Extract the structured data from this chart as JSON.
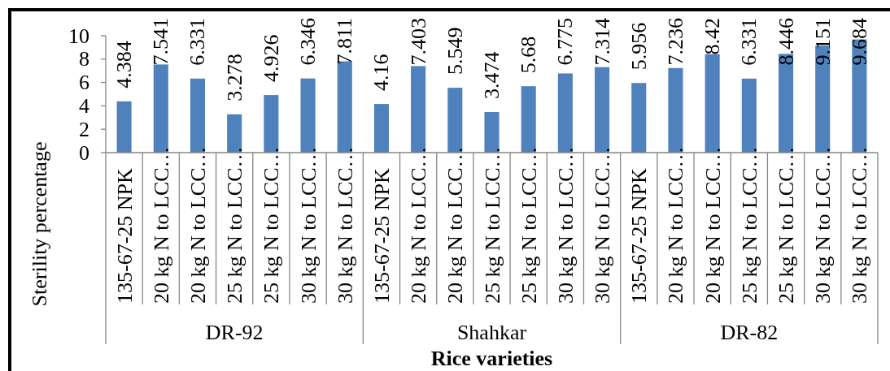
{
  "chart_data": {
    "type": "bar",
    "xlabel": "Rice varieties",
    "ylabel": "Sterility percentage",
    "categories": [
      "135-67-25 NPK",
      "20 kg N to LCC…",
      "20 kg N to LCC…",
      "25 kg N to LCC…",
      "25 kg N to LCC…",
      "30 kg N to LCC…",
      "30 kg N to LCC…",
      "135-67-25 NPK",
      "20 kg N to LCC…",
      "20 kg N to LCC…",
      "25 kg N to LCC…",
      "25 kg N to LCC…",
      "30 kg N to LCC…",
      "30 kg N to LCC…",
      "135-67-25 NPK",
      "20 kg N to LCC…",
      "20 kg N to LCC…",
      "25 kg N to LCC…",
      "25 kg N to LCC…",
      "30 kg N to LCC…",
      "30 kg N to LCC…"
    ],
    "values": [
      4.384,
      7.541,
      6.331,
      3.278,
      4.926,
      6.346,
      7.811,
      4.16,
      7.403,
      5.549,
      3.474,
      5.68,
      6.775,
      7.314,
      5.956,
      7.236,
      8.42,
      6.331,
      8.446,
      9.151,
      9.684
    ],
    "color": "#4f81bd",
    "ylim": [
      0,
      10
    ],
    "yticks": [
      0,
      2,
      4,
      6,
      8,
      10
    ],
    "data_labels": true,
    "annotations": [
      "DR-92",
      "Shahkar",
      "DR-82"
    ]
  }
}
